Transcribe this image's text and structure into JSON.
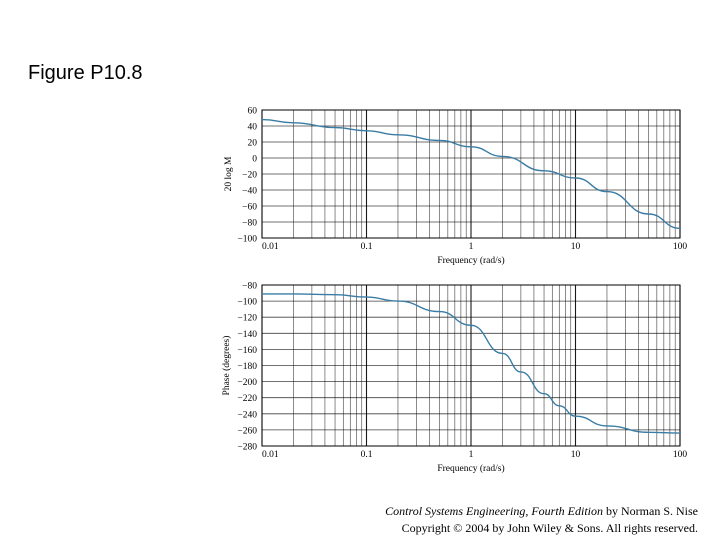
{
  "figure": {
    "title": "Figure P10.8"
  },
  "credit": {
    "book_title": "Control Systems Engineering, Fourth Edition",
    "author_text": " by Norman S. Nise",
    "copyright": "Copyright © 2004 by John Wiley & Sons. All rights reserved."
  },
  "colors": {
    "curve": "#3a7ca5",
    "grid": "#000000"
  },
  "chart_data": [
    {
      "type": "line",
      "x_scale": "log",
      "xlim": [
        0.01,
        100
      ],
      "x_tick_labels": [
        "0.01",
        "0.1",
        "1",
        "10",
        "100"
      ],
      "x_tick_values": [
        0.01,
        0.1,
        1,
        10,
        100
      ],
      "xlabel": "Frequency (rad/s)",
      "ylabel": "20 log M",
      "ylim": [
        -100,
        60
      ],
      "y_tick_values": [
        60,
        40,
        20,
        0,
        -20,
        -40,
        -60,
        -80,
        -100
      ],
      "y_tick_labels": [
        "60",
        "40",
        "20",
        "0",
        "−20",
        "−40",
        "−60",
        "−80",
        "−100"
      ],
      "grid": true,
      "series": [
        {
          "x": [
            0.01,
            0.02,
            0.05,
            0.1,
            0.2,
            0.5,
            1,
            2,
            5,
            10,
            20,
            50,
            100
          ],
          "y": [
            48,
            44,
            38,
            34,
            29,
            22,
            14,
            2,
            -16,
            -25,
            -42,
            -70,
            -88
          ]
        }
      ]
    },
    {
      "type": "line",
      "x_scale": "log",
      "xlim": [
        0.01,
        100
      ],
      "x_tick_labels": [
        "0.01",
        "0.1",
        "1",
        "10",
        "100"
      ],
      "x_tick_values": [
        0.01,
        0.1,
        1,
        10,
        100
      ],
      "xlabel": "Frequency (rad/s)",
      "ylabel": "Phase (degrees)",
      "ylim": [
        -280,
        -80
      ],
      "y_tick_values": [
        -80,
        -100,
        -120,
        -140,
        -160,
        -180,
        -200,
        -220,
        -240,
        -260,
        -280
      ],
      "y_tick_labels": [
        "−80",
        "−100",
        "−120",
        "−140",
        "−160",
        "−180",
        "−200",
        "−220",
        "−240",
        "−260",
        "−280"
      ],
      "grid": true,
      "series": [
        {
          "x": [
            0.01,
            0.02,
            0.05,
            0.1,
            0.2,
            0.5,
            1,
            2,
            3,
            5,
            7,
            10,
            20,
            50,
            100
          ],
          "y": [
            -91,
            -91,
            -92,
            -95,
            -100,
            -113,
            -130,
            -165,
            -188,
            -215,
            -230,
            -243,
            -255,
            -263,
            -264
          ]
        }
      ]
    }
  ]
}
